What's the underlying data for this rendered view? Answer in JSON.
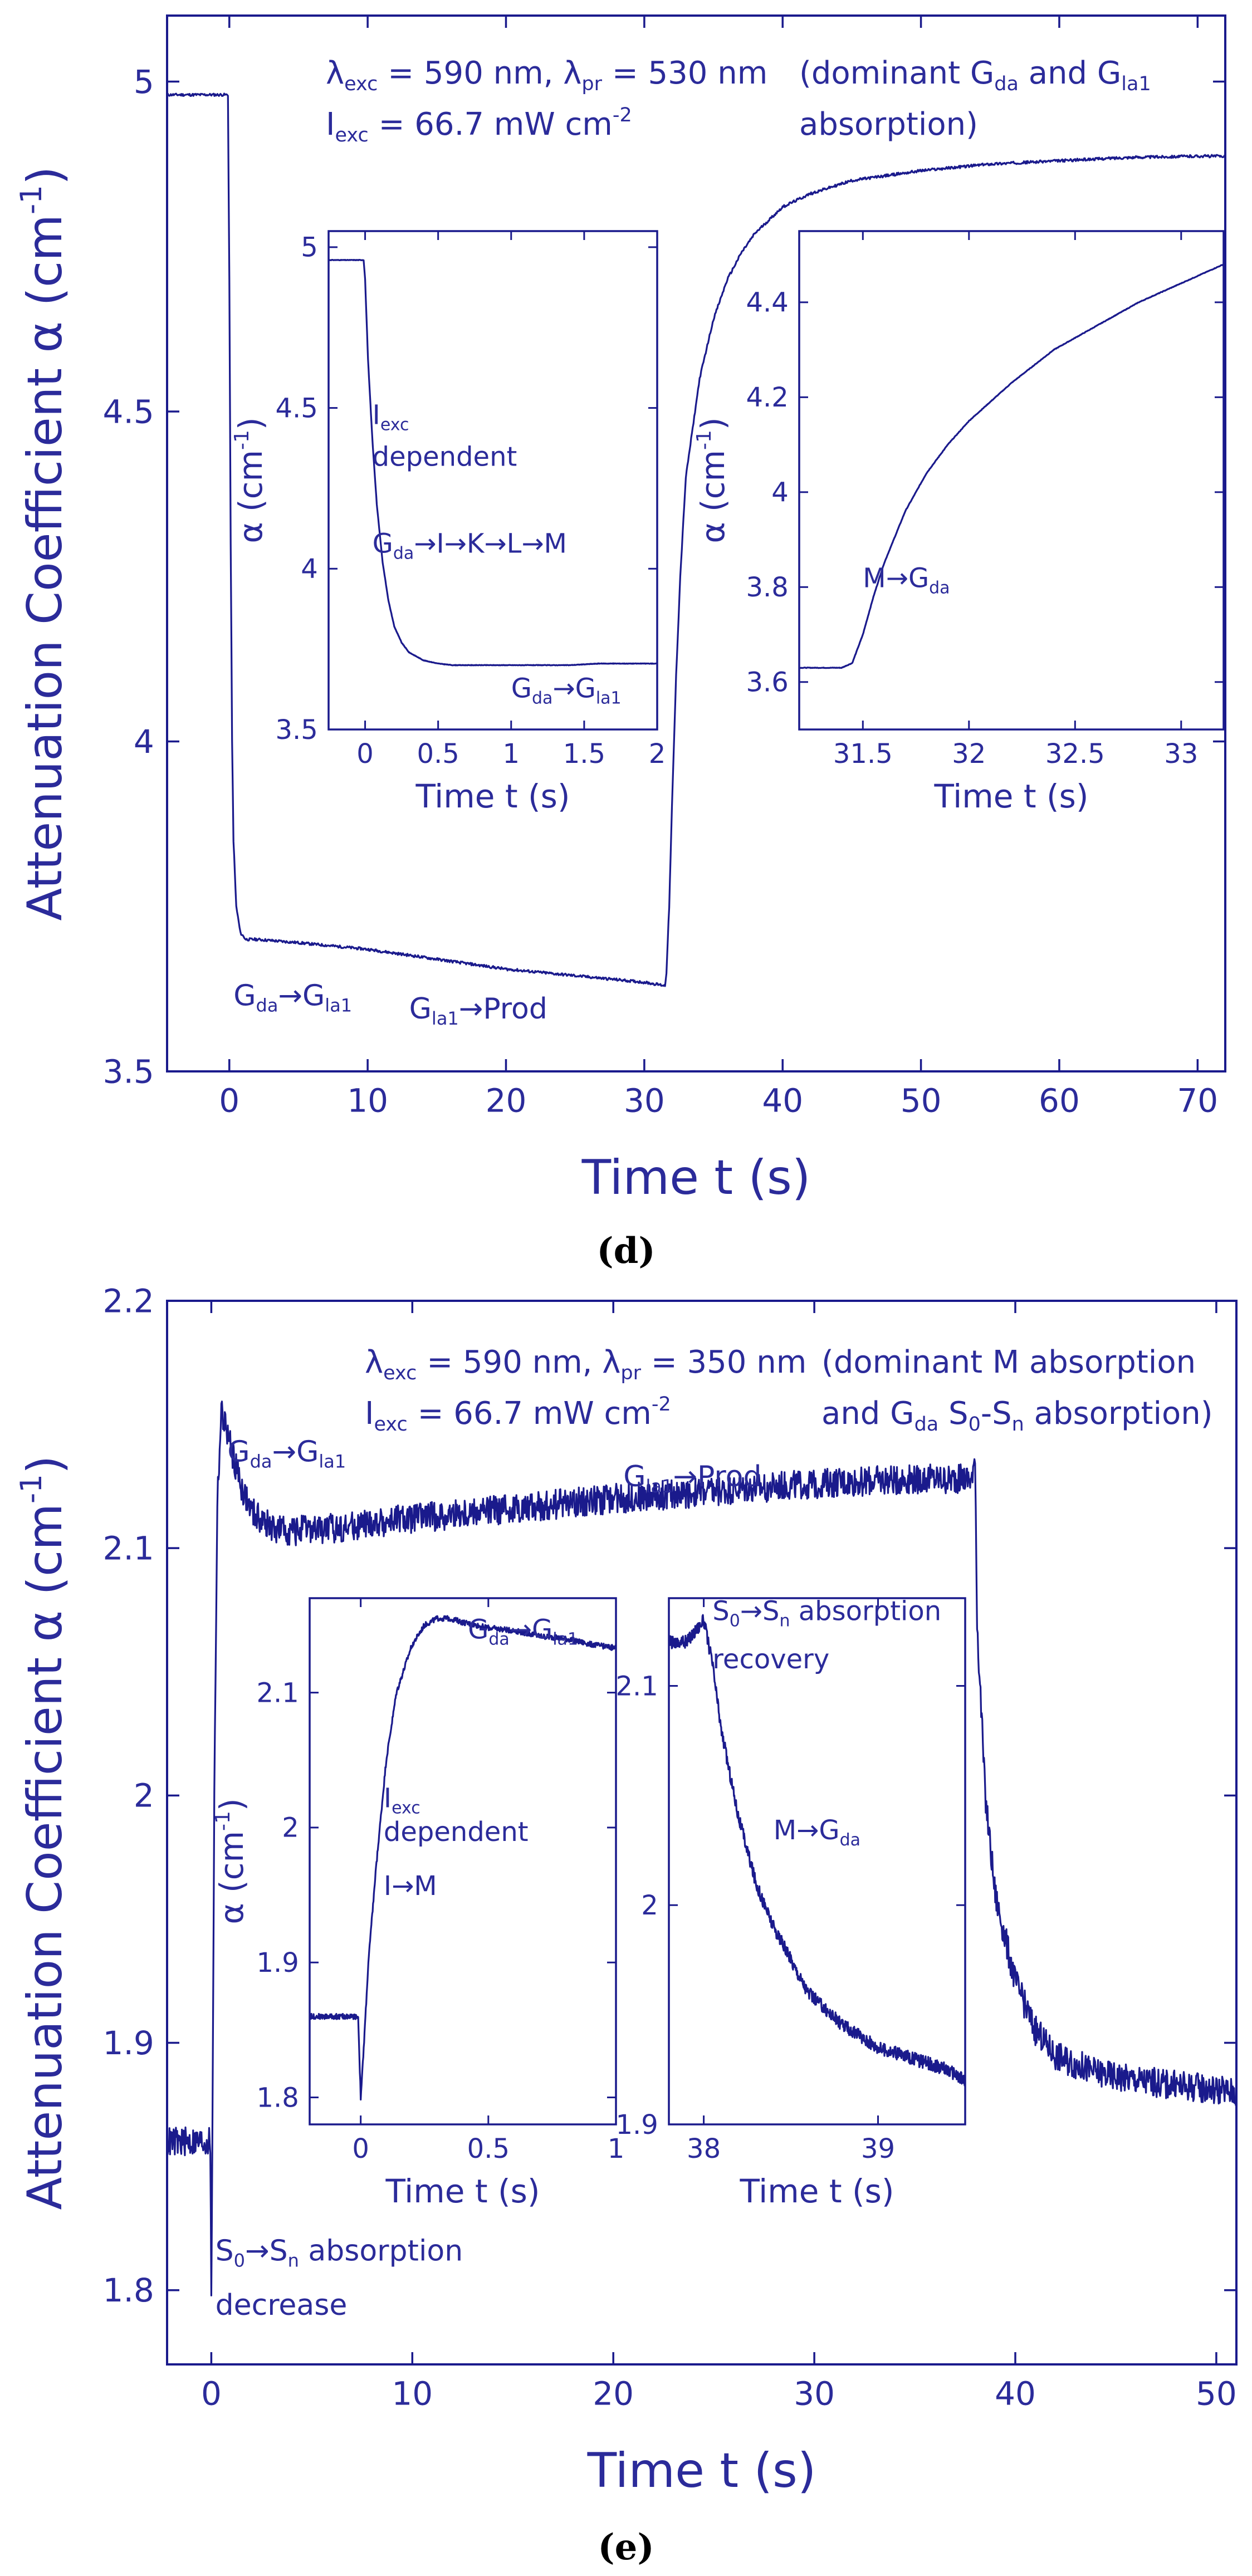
{
  "chart_data": [
    {
      "type": "line",
      "panel": "d",
      "caption": "(d)",
      "xlabel": "Time t (s)",
      "ylabel": "Attenuation Coefficient  α  (cm⁻¹)",
      "xlim": [
        -4.5,
        72
      ],
      "ylim": [
        3.5,
        5.1
      ],
      "xticks": [
        0,
        10,
        20,
        30,
        40,
        50,
        60,
        70
      ],
      "yticks": [
        3.5,
        4,
        4.5,
        5
      ],
      "xtick_labels": [
        "0",
        "10",
        "20",
        "30",
        "40",
        "50",
        "60",
        "70"
      ],
      "ytick_labels": [
        "3.5",
        "4",
        "4.5",
        "5"
      ],
      "conditions": [
        "λexc = 590 nm, λpr = 530 nm",
        "Iexc = 66.7 mW cm⁻²"
      ],
      "note": [
        "(dominant Gda and Gla1",
        "absorption)"
      ],
      "annotations": [
        {
          "text": "Gda→Gla1",
          "x": 0.3,
          "y": 3.6
        },
        {
          "text": "Gla1→Prod",
          "x": 13.0,
          "y": 3.58
        }
      ],
      "series": [
        {
          "name": "attenuation",
          "x": [
            -4.5,
            -0.1,
            0.0,
            0.1,
            0.2,
            0.3,
            0.5,
            0.8,
            1.2,
            2,
            5,
            10,
            15,
            20,
            25,
            30,
            31.5,
            31.6,
            31.8,
            32,
            32.3,
            32.6,
            33,
            34,
            35,
            36,
            37,
            38,
            40,
            42,
            45,
            50,
            55,
            60,
            65,
            70,
            72
          ],
          "y": [
            4.98,
            4.98,
            4.7,
            4.3,
            4.0,
            3.85,
            3.75,
            3.71,
            3.7,
            3.7,
            3.695,
            3.685,
            3.67,
            3.655,
            3.645,
            3.635,
            3.63,
            3.65,
            3.75,
            3.9,
            4.1,
            4.25,
            4.4,
            4.55,
            4.64,
            4.7,
            4.74,
            4.77,
            4.81,
            4.83,
            4.85,
            4.865,
            4.875,
            4.88,
            4.885,
            4.887,
            4.887
          ]
        }
      ],
      "insets": [
        {
          "xlabel": "Time t (s)",
          "ylabel": "α  (cm⁻¹)",
          "xlim": [
            -0.25,
            2.0
          ],
          "ylim": [
            3.5,
            5.05
          ],
          "xticks": [
            0,
            0.5,
            1,
            1.5,
            2
          ],
          "yticks": [
            3.5,
            4,
            4.5,
            5
          ],
          "xtick_labels": [
            "0",
            "0.5",
            "1",
            "1.5",
            "2"
          ],
          "ytick_labels": [
            "3.5",
            "4",
            "4.5",
            "5"
          ],
          "annotations": [
            {
              "text": "Iexc",
              "x": 0.05,
              "y": 4.45
            },
            {
              "text": "dependent",
              "x": 0.05,
              "y": 4.32
            },
            {
              "text": "Gda→I→K→L→M",
              "x": 0.05,
              "y": 4.05
            },
            {
              "text": "Gda→Gla1",
              "x": 1.0,
              "y": 3.6
            }
          ],
          "series": [
            {
              "name": "inset-1",
              "x": [
                -0.25,
                -0.01,
                0.0,
                0.02,
                0.05,
                0.08,
                0.12,
                0.16,
                0.2,
                0.25,
                0.3,
                0.4,
                0.5,
                0.6,
                0.8,
                1.0,
                1.2,
                1.4,
                1.6,
                1.8,
                2.0
              ],
              "y": [
                4.96,
                4.96,
                4.9,
                4.65,
                4.4,
                4.2,
                4.02,
                3.9,
                3.82,
                3.77,
                3.74,
                3.715,
                3.705,
                3.7,
                3.7,
                3.7,
                3.7,
                3.7,
                3.705,
                3.705,
                3.705
              ]
            }
          ]
        },
        {
          "xlabel": "Time t (s)",
          "ylabel": "α  (cm⁻¹)",
          "xlim": [
            31.2,
            33.2
          ],
          "ylim": [
            3.5,
            4.55
          ],
          "xticks": [
            31.5,
            32,
            32.5,
            33
          ],
          "yticks": [
            3.6,
            3.8,
            4,
            4.2,
            4.4
          ],
          "xtick_labels": [
            "31.5",
            "32",
            "32.5",
            "33"
          ],
          "ytick_labels": [
            "3.6",
            "3.8",
            "4",
            "4.2",
            "4.4"
          ],
          "annotations": [
            {
              "text": "M→Gda",
              "x": 31.5,
              "y": 3.8
            }
          ],
          "series": [
            {
              "name": "inset-2",
              "x": [
                31.2,
                31.4,
                31.45,
                31.5,
                31.55,
                31.6,
                31.7,
                31.8,
                31.9,
                32.0,
                32.2,
                32.4,
                32.6,
                32.8,
                33.0,
                33.2
              ],
              "y": [
                3.63,
                3.63,
                3.64,
                3.7,
                3.78,
                3.85,
                3.96,
                4.04,
                4.1,
                4.15,
                4.23,
                4.3,
                4.35,
                4.4,
                4.44,
                4.48
              ]
            }
          ]
        }
      ]
    },
    {
      "type": "line",
      "panel": "e",
      "caption": "(e)",
      "xlabel": "Time t (s)",
      "ylabel": "Attenuation Coefficient  α  (cm⁻¹)",
      "xlim": [
        -2.2,
        51
      ],
      "ylim": [
        1.77,
        2.2
      ],
      "xticks": [
        0,
        10,
        20,
        30,
        40,
        50
      ],
      "yticks": [
        1.8,
        1.9,
        2,
        2.1,
        2.2
      ],
      "xtick_labels": [
        "0",
        "10",
        "20",
        "30",
        "40",
        "50"
      ],
      "ytick_labels": [
        "1.8",
        "1.9",
        "2",
        "2.1",
        "2.2"
      ],
      "conditions": [
        "λexc = 590 nm, λpr = 350 nm",
        "Iexc = 66.7 mW cm⁻²"
      ],
      "note": [
        "(dominant M absorption",
        "and Gda S0-Sn absorption)"
      ],
      "annotations": [
        {
          "text": "Gda→Gla1",
          "x": 0.8,
          "y": 2.135
        },
        {
          "text": "Gla1→Prod",
          "x": 20.5,
          "y": 2.125
        },
        {
          "text": "S0→Sn absorption",
          "x": 0.2,
          "y": 1.812
        },
        {
          "text": "decrease",
          "x": 0.2,
          "y": 1.79
        }
      ],
      "series": [
        {
          "name": "attenuation",
          "x": [
            -2.2,
            -0.05,
            0.0,
            0.05,
            0.15,
            0.3,
            0.5,
            0.7,
            1.0,
            1.5,
            2,
            3,
            4,
            6,
            10,
            15,
            20,
            25,
            30,
            35,
            37.9,
            38.0,
            38.1,
            38.5,
            39,
            40,
            41,
            42,
            44,
            46,
            48,
            51
          ],
          "y": [
            1.86,
            1.86,
            1.795,
            1.86,
            2.0,
            2.12,
            2.155,
            2.15,
            2.14,
            2.125,
            2.115,
            2.108,
            2.107,
            2.108,
            2.112,
            2.116,
            2.12,
            2.123,
            2.126,
            2.128,
            2.128,
            2.14,
            2.07,
            2.0,
            1.96,
            1.925,
            1.905,
            1.895,
            1.888,
            1.885,
            1.883,
            1.88
          ]
        }
      ],
      "insets": [
        {
          "xlabel": "Time t (s)",
          "ylabel": "α  (cm⁻¹)",
          "xlim": [
            -0.2,
            1.0
          ],
          "ylim": [
            1.78,
            2.17
          ],
          "xticks": [
            0,
            0.5,
            1
          ],
          "yticks": [
            1.8,
            1.9,
            2,
            2.1
          ],
          "xtick_labels": [
            "0",
            "0.5",
            "1"
          ],
          "ytick_labels": [
            "1.8",
            "1.9",
            "2",
            "2.1"
          ],
          "annotations": [
            {
              "text": "Gda→Gla1",
              "x": 0.42,
              "y": 2.14
            },
            {
              "text": "Iexc",
              "x": 0.09,
              "y": 2.015
            },
            {
              "text": "dependent",
              "x": 0.09,
              "y": 1.99
            },
            {
              "text": "I→M",
              "x": 0.09,
              "y": 1.95
            }
          ],
          "series": [
            {
              "name": "inset-1",
              "x": [
                -0.2,
                -0.01,
                0.0,
                0.01,
                0.03,
                0.06,
                0.1,
                0.14,
                0.2,
                0.25,
                0.3,
                0.35,
                0.4,
                0.5,
                0.6,
                0.7,
                0.8,
                0.9,
                1.0
              ],
              "y": [
                1.86,
                1.86,
                1.8,
                1.83,
                1.9,
                1.97,
                2.05,
                2.1,
                2.135,
                2.15,
                2.155,
                2.155,
                2.152,
                2.148,
                2.146,
                2.142,
                2.14,
                2.136,
                2.133
              ]
            }
          ]
        },
        {
          "xlabel": "Time t (s)",
          "ylabel": "",
          "xlim": [
            37.8,
            39.5
          ],
          "ylim": [
            1.9,
            2.14
          ],
          "xticks": [
            38,
            39
          ],
          "yticks": [
            1.9,
            2,
            2.1
          ],
          "xtick_labels": [
            "38",
            "39"
          ],
          "ytick_labels": [
            "1.9",
            "2",
            "2.1"
          ],
          "annotations": [
            {
              "text": "S0→Sn absorption",
              "x": 38.05,
              "y": 2.13
            },
            {
              "text": "recovery",
              "x": 38.05,
              "y": 2.108
            },
            {
              "text": "M→Gda",
              "x": 38.4,
              "y": 2.03
            }
          ],
          "series": [
            {
              "name": "inset-2",
              "x": [
                37.8,
                37.9,
                38.0,
                38.05,
                38.1,
                38.2,
                38.3,
                38.4,
                38.5,
                38.6,
                38.8,
                39.0,
                39.2,
                39.4,
                39.5
              ],
              "y": [
                2.12,
                2.12,
                2.13,
                2.11,
                2.08,
                2.04,
                2.01,
                1.99,
                1.975,
                1.96,
                1.945,
                1.935,
                1.93,
                1.925,
                1.92
              ]
            }
          ]
        }
      ]
    }
  ]
}
